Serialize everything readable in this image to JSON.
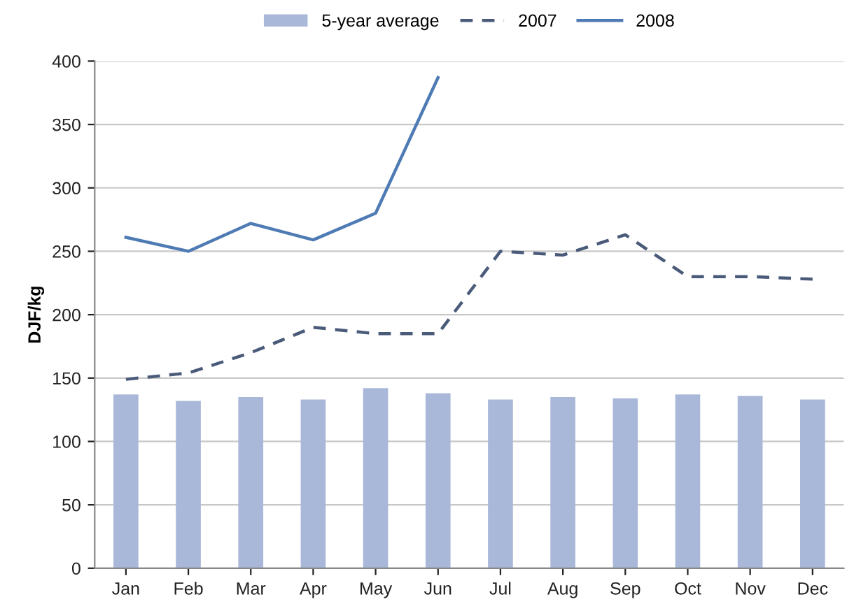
{
  "chart_data": {
    "type": "bar",
    "ylabel": "DJF/kg",
    "categories": [
      "Jan",
      "Feb",
      "Mar",
      "Apr",
      "May",
      "Jun",
      "Jul",
      "Aug",
      "Sep",
      "Oct",
      "Nov",
      "Dec"
    ],
    "series": [
      {
        "name": "5-year average",
        "color": "#a9b8d8",
        "values": [
          137,
          132,
          135,
          133,
          142,
          138,
          133,
          135,
          134,
          137,
          136,
          133
        ]
      },
      {
        "name": "2007",
        "type": "line",
        "line_style": "dashed",
        "color": "#4a5b7a",
        "values": [
          149,
          154,
          170,
          190,
          185,
          185,
          250,
          247,
          263,
          230,
          230,
          228
        ]
      },
      {
        "name": "2008",
        "type": "line",
        "line_style": "solid",
        "color": "#4f7bb5",
        "values": [
          261,
          250,
          272,
          259,
          280,
          387,
          null,
          null,
          null,
          null,
          null,
          null
        ]
      }
    ],
    "ylim": [
      0,
      400
    ],
    "yticks": [
      0,
      50,
      100,
      150,
      200,
      250,
      300,
      350,
      400
    ],
    "grid": "y",
    "legend": "top",
    "marker": "none"
  }
}
